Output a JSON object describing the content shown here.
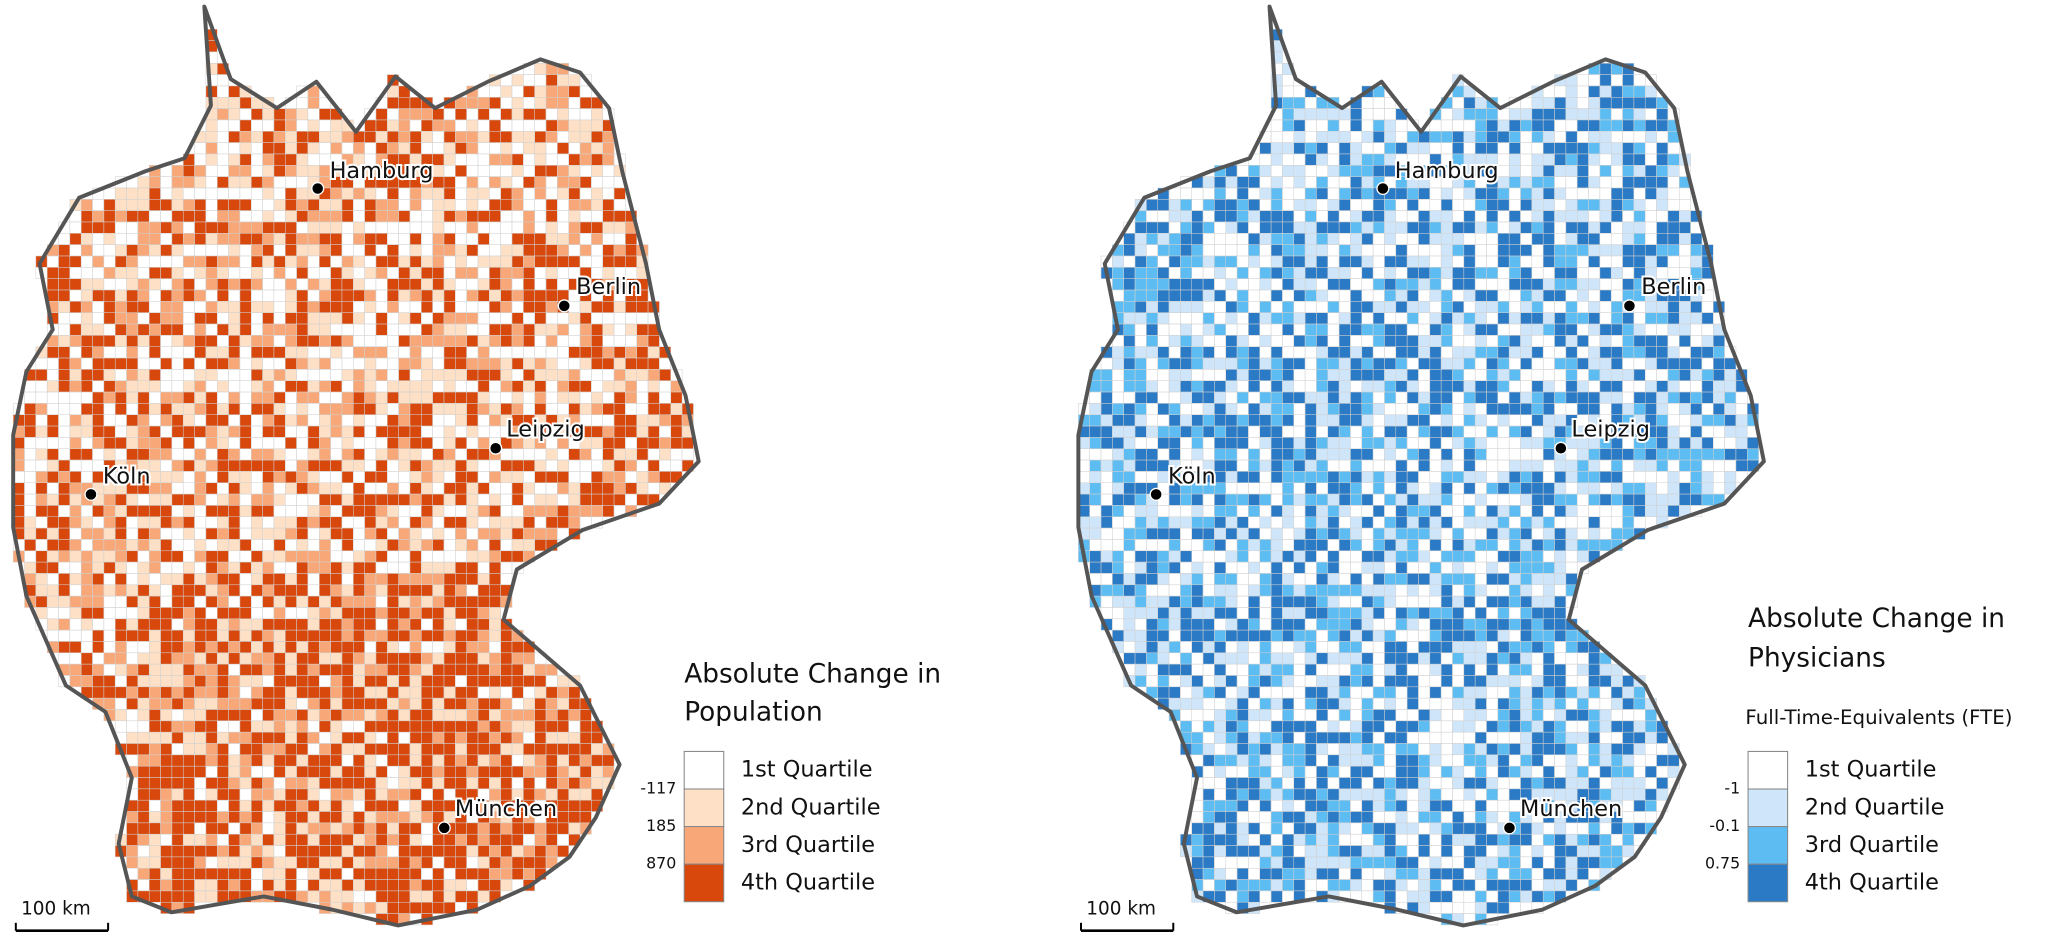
{
  "maps": [
    {
      "title_lines": [
        "Absolute Change in",
        "Population"
      ],
      "legend": {
        "classes": [
          "1st Quartile",
          "2nd Quartile",
          "3rd Quartile",
          "4th Quartile"
        ],
        "breaks": [
          -117,
          185,
          870
        ],
        "colors": [
          "#ffffff",
          "#fde0c5",
          "#f8a878",
          "#d8480c"
        ]
      },
      "cities": [
        "Hamburg",
        "Berlin",
        "Leipzig",
        "Köln",
        "München"
      ],
      "scale_bar": "100 km"
    },
    {
      "title_lines": [
        "Absolute Change in",
        "Physicians"
      ],
      "subtitle": "Full-Time-Equivalents (FTE)",
      "legend": {
        "classes": [
          "1st Quartile",
          "2nd Quartile",
          "3rd Quartile",
          "4th Quartile"
        ],
        "breaks": [
          -1,
          -0.1,
          0.75
        ],
        "colors": [
          "#ffffff",
          "#cfe6fa",
          "#5dbdf2",
          "#2a7ac6"
        ]
      },
      "cities": [
        "Hamburg",
        "Berlin",
        "Leipzig",
        "Köln",
        "München"
      ],
      "scale_bar": "100 km"
    }
  ]
}
